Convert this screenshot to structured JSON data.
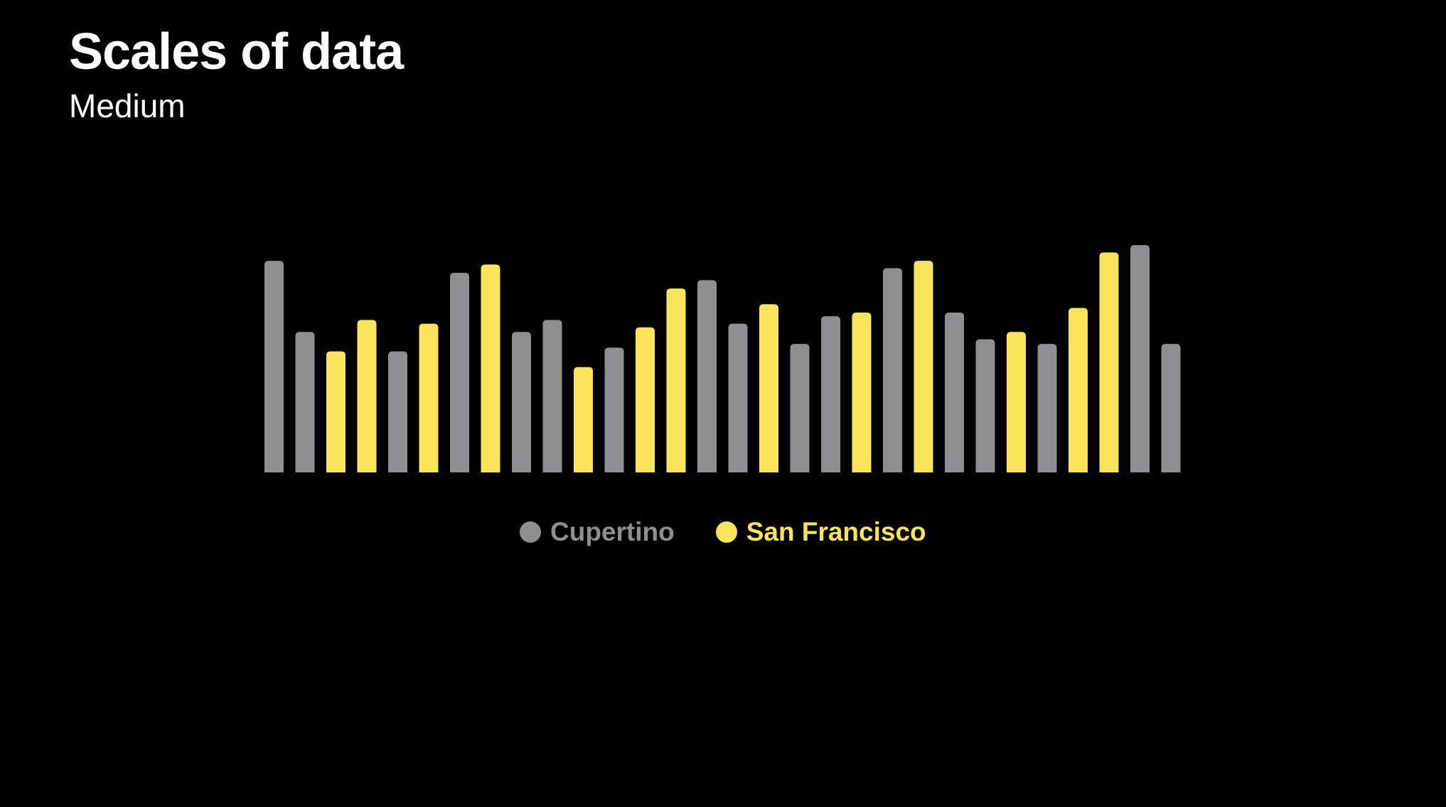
{
  "chart_data": {
    "type": "bar",
    "title": "Scales of data",
    "subtitle": "Medium",
    "xlabel": "",
    "ylabel": "",
    "grid": false,
    "legend_position": "bottom-center",
    "colors": {
      "Cupertino": "#8e8e93",
      "San Francisco": "#fbe35b"
    },
    "legend": [
      {
        "name": "Cupertino",
        "color": "#8e8e93"
      },
      {
        "name": "San Francisco",
        "color": "#fbe35b"
      }
    ],
    "bars": [
      {
        "series": "Cupertino",
        "value": 229
      },
      {
        "series": "Cupertino",
        "value": 152
      },
      {
        "series": "San Francisco",
        "value": 131
      },
      {
        "series": "San Francisco",
        "value": 165
      },
      {
        "series": "Cupertino",
        "value": 131
      },
      {
        "series": "San Francisco",
        "value": 161
      },
      {
        "series": "Cupertino",
        "value": 216
      },
      {
        "series": "San Francisco",
        "value": 225
      },
      {
        "series": "Cupertino",
        "value": 152
      },
      {
        "series": "Cupertino",
        "value": 165
      },
      {
        "series": "San Francisco",
        "value": 114
      },
      {
        "series": "Cupertino",
        "value": 135
      },
      {
        "series": "San Francisco",
        "value": 157
      },
      {
        "series": "San Francisco",
        "value": 199
      },
      {
        "series": "Cupertino",
        "value": 208
      },
      {
        "series": "Cupertino",
        "value": 161
      },
      {
        "series": "San Francisco",
        "value": 182
      },
      {
        "series": "Cupertino",
        "value": 139
      },
      {
        "series": "Cupertino",
        "value": 169
      },
      {
        "series": "San Francisco",
        "value": 173
      },
      {
        "series": "Cupertino",
        "value": 221
      },
      {
        "series": "San Francisco",
        "value": 229
      },
      {
        "series": "Cupertino",
        "value": 173
      },
      {
        "series": "Cupertino",
        "value": 144
      },
      {
        "series": "San Francisco",
        "value": 152
      },
      {
        "series": "Cupertino",
        "value": 139
      },
      {
        "series": "San Francisco",
        "value": 178
      },
      {
        "series": "San Francisco",
        "value": 238
      },
      {
        "series": "Cupertino",
        "value": 246
      },
      {
        "series": "Cupertino",
        "value": 139
      }
    ],
    "ylim": [
      0,
      246
    ]
  }
}
